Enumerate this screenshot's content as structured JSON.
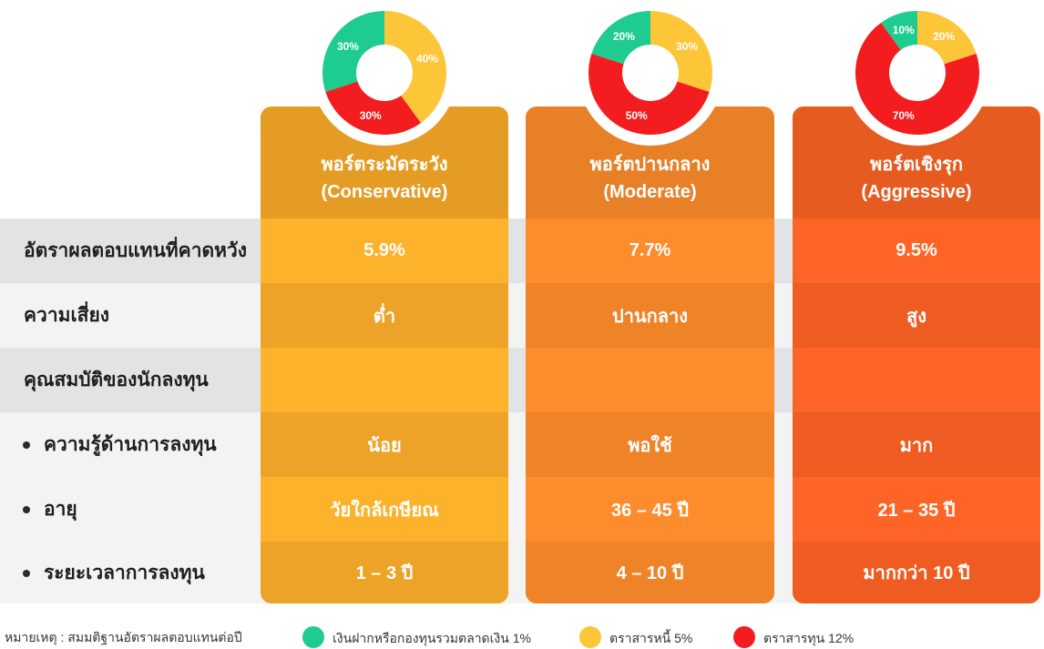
{
  "rows": [
    {
      "label": "อัตราผลตอบแทนที่คาดหวัง",
      "bullet": false
    },
    {
      "label": "ความเสี่ยง",
      "bullet": false
    },
    {
      "label": "คุณสมบัติของนักลงทุน",
      "bullet": false
    },
    {
      "label": "ความรู้ด้านการลงทุน",
      "bullet": true
    },
    {
      "label": "อายุ",
      "bullet": true
    },
    {
      "label": "ระยะเวลาการลงทุน",
      "bullet": true
    }
  ],
  "portfolios": [
    {
      "title": "พอร์ตระมัดระวัง",
      "subtitle": "(Conservative)",
      "values": [
        "5.9%",
        "ต่ำ",
        "",
        "น้อย",
        "วัยใกล้เกษียณ",
        "1 – 3 ปี"
      ]
    },
    {
      "title": "พอร์ตปานกลาง",
      "subtitle": "(Moderate)",
      "values": [
        "7.7%",
        "ปานกลาง",
        "",
        "พอใช้",
        "36 – 45 ปี",
        "4 – 10 ปี"
      ]
    },
    {
      "title": "พอร์ตเชิงรุก",
      "subtitle": "(Aggressive)",
      "values": [
        "9.5%",
        "สูง",
        "",
        "มาก",
        "21 – 35 ปี",
        "มากกว่า 10 ปี"
      ]
    }
  ],
  "colors": {
    "deposit": "#1fcc8f",
    "bond": "#fcc638",
    "equity": "#f31c1e",
    "col1_head": "#e59c24",
    "col1_a": "#fdb22b",
    "col1_b": "#eda328",
    "col2_head": "#e88028",
    "col2_a": "#fd8c2c",
    "col2_b": "#ee8328",
    "col3_head": "#e65c20",
    "col3_a": "#fe6425",
    "col3_b": "#ef5c21"
  },
  "chart_data": [
    {
      "type": "pie",
      "categories": [
        "เงินฝากหรือกองทุนรวมตลาดเงิน",
        "ตราสารหนี้",
        "ตราสารทุน"
      ],
      "values": [
        30,
        40,
        30
      ],
      "value_labels": [
        "30%",
        "40%",
        "30%"
      ]
    },
    {
      "type": "pie",
      "categories": [
        "เงินฝากหรือกองทุนรวมตลาดเงิน",
        "ตราสารหนี้",
        "ตราสารทุน"
      ],
      "values": [
        20,
        30,
        50
      ],
      "value_labels": [
        "20%",
        "30%",
        "50%"
      ]
    },
    {
      "type": "pie",
      "categories": [
        "เงินฝากหรือกองทุนรวมตลาดเงิน",
        "ตราสารหนี้",
        "ตราสารทุน"
      ],
      "values": [
        10,
        20,
        70
      ],
      "value_labels": [
        "10%",
        "20%",
        "70%"
      ]
    }
  ],
  "footer": {
    "note": "หมายเหตุ : สมมติฐานอัตราผลตอบแทนต่อปี",
    "legend": [
      {
        "label": "เงินฝากหรือกองทุนรวมตลาดเงิน 1%"
      },
      {
        "label": "ตราสารหนี้ 5%"
      },
      {
        "label": "ตราสารทุน 12%"
      }
    ]
  }
}
